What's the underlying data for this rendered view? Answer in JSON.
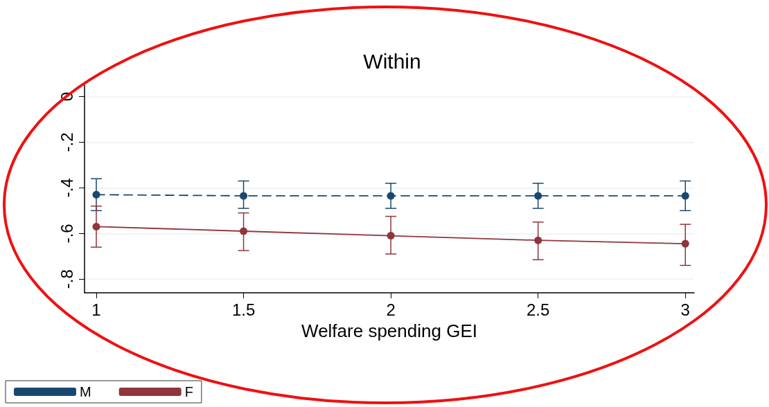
{
  "chart_data": {
    "type": "line",
    "title": "Within",
    "xlabel": "Welfare spending GEI",
    "x": [
      1,
      1.5,
      2,
      2.5,
      3
    ],
    "series": [
      {
        "name": "M",
        "color": "#1a476f",
        "line_style": "dashed",
        "values": [
          -0.43,
          -0.435,
          -0.435,
          -0.435,
          -0.435
        ],
        "errors": [
          [
            -0.5,
            -0.36
          ],
          [
            -0.49,
            -0.37
          ],
          [
            -0.49,
            -0.38
          ],
          [
            -0.49,
            -0.38
          ],
          [
            -0.5,
            -0.37
          ]
        ]
      },
      {
        "name": "F",
        "color": "#90353b",
        "line_style": "solid",
        "values": [
          -0.57,
          -0.59,
          -0.61,
          -0.63,
          -0.645
        ],
        "errors": [
          [
            -0.66,
            -0.48
          ],
          [
            -0.675,
            -0.51
          ],
          [
            -0.69,
            -0.525
          ],
          [
            -0.715,
            -0.55
          ],
          [
            -0.74,
            -0.56
          ]
        ]
      }
    ],
    "xlim": [
      0.96,
      3.03
    ],
    "xticks": [
      1,
      1.5,
      2,
      2.5,
      3
    ],
    "ylim": [
      -0.86,
      0.05
    ],
    "yticks": [
      {
        "value": -0.8,
        "label": "-.8"
      },
      {
        "value": -0.6,
        "label": "-.6"
      },
      {
        "value": -0.4,
        "label": "-.4"
      },
      {
        "value": -0.2,
        "label": "-.2"
      },
      {
        "value": 0,
        "label": "0"
      }
    ],
    "grid": "y",
    "marker": "circle",
    "legend": "bottom left"
  }
}
